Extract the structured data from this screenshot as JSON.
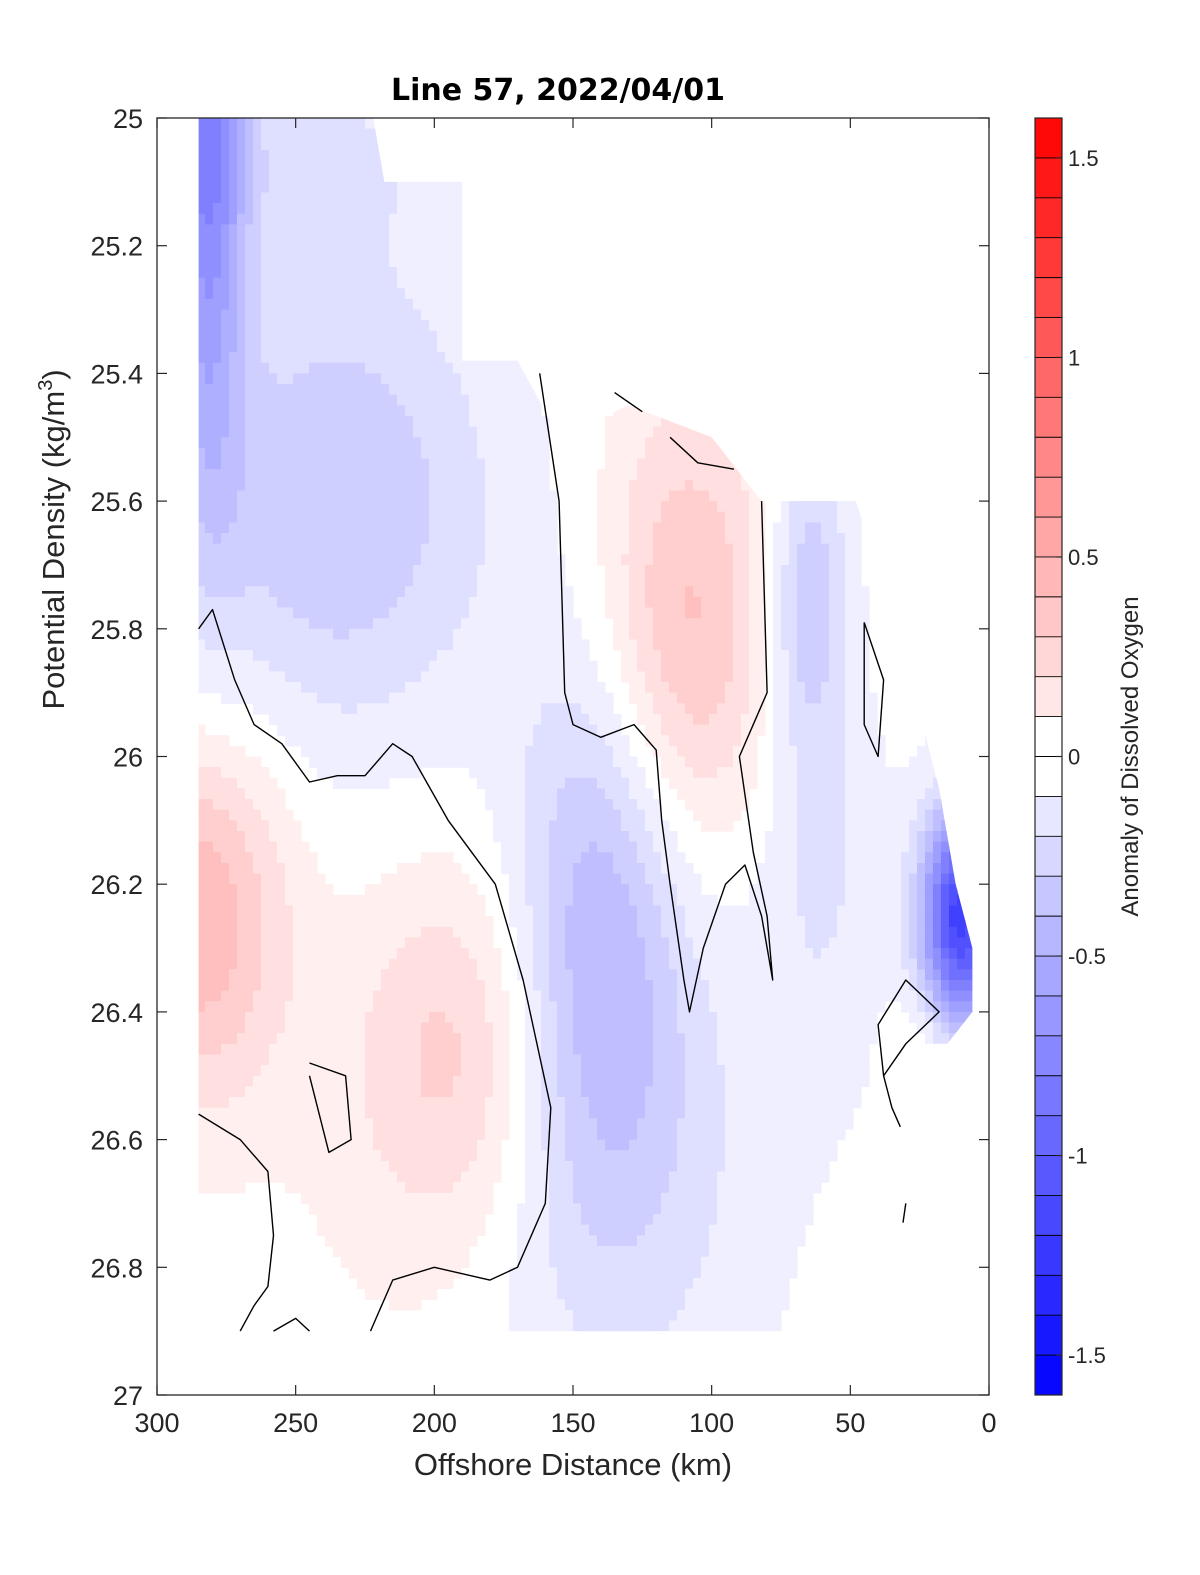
{
  "chart_data": {
    "type": "heatmap",
    "title": "Line 57, 2022/04/01",
    "xlabel": "Offshore Distance (km)",
    "ylabel_main": "Potential Density (kg/m",
    "ylabel_sup": "3",
    "ylabel_close": ")",
    "xlim": [
      300,
      0
    ],
    "ylim": [
      25,
      27
    ],
    "x_ticks": [
      300,
      250,
      200,
      150,
      100,
      50,
      0
    ],
    "x_tick_labels": [
      "300",
      "250",
      "200",
      "150",
      "100",
      "50",
      "0"
    ],
    "y_ticks": [
      25,
      25.2,
      25.4,
      25.6,
      25.8,
      26,
      26.2,
      26.4,
      26.6,
      26.8,
      27
    ],
    "y_tick_labels": [
      "25",
      "25.2",
      "25.4",
      "25.6",
      "25.8",
      "26",
      "26.2",
      "26.4",
      "26.6",
      "26.8",
      "27"
    ],
    "colorbar": {
      "label": "Anomaly of Dissolved Oxygen",
      "range": [
        -1.6,
        1.6
      ],
      "step": 0.1,
      "ticks": [
        1.5,
        1,
        0.5,
        0,
        -0.5,
        -1,
        -1.5
      ],
      "tick_labels": [
        "1.5",
        "1",
        "0.5",
        "0",
        "-0.5",
        "-1",
        "-1.5"
      ],
      "neutral_band": [
        -0.05,
        0.05
      ],
      "positive_color": "#ff0000",
      "negative_color": "#0000ff",
      "neutral_color": "#ffffff"
    },
    "contour_level": 0,
    "contour_color": "#000000",
    "data_columns_x": [
      285,
      140,
      125,
      70,
      50,
      10
    ],
    "field_features": [
      {
        "kind": "low",
        "x": 235,
        "y": 25.6,
        "value": -0.35,
        "sx": 40,
        "sy": 0.26
      },
      {
        "kind": "low",
        "x": 282,
        "y": 25.0,
        "value": -0.7,
        "sx": 10,
        "sy": 0.4
      },
      {
        "kind": "low",
        "x": 248,
        "y": 25.05,
        "value": -0.15,
        "sx": 45,
        "sy": 0.12
      },
      {
        "kind": "low",
        "x": 140,
        "y": 26.25,
        "value": -0.4,
        "sx": 22,
        "sy": 0.3
      },
      {
        "kind": "low",
        "x": 135,
        "y": 26.65,
        "value": -0.2,
        "sx": 40,
        "sy": 0.3
      },
      {
        "kind": "low",
        "x": 65,
        "y": 25.75,
        "value": -0.35,
        "sx": 10,
        "sy": 0.18
      },
      {
        "kind": "low",
        "x": 60,
        "y": 26.2,
        "value": -0.15,
        "sx": 18,
        "sy": 0.22
      },
      {
        "kind": "low",
        "x": 10,
        "y": 26.25,
        "value": -1.2,
        "sx": 10,
        "sy": 0.12
      },
      {
        "kind": "high",
        "x": 110,
        "y": 25.8,
        "value": 0.4,
        "sx": 22,
        "sy": 0.25
      },
      {
        "kind": "high",
        "x": 285,
        "y": 26.25,
        "value": 0.45,
        "sx": 22,
        "sy": 0.2
      },
      {
        "kind": "high",
        "x": 190,
        "y": 26.45,
        "value": 0.25,
        "sx": 25,
        "sy": 0.2
      },
      {
        "kind": "high",
        "x": 200,
        "y": 26.6,
        "value": 0.1,
        "sx": 35,
        "sy": 0.25
      },
      {
        "kind": "high",
        "x": 25,
        "y": 26.45,
        "value": 0.1,
        "sx": 8,
        "sy": 0.06
      }
    ]
  }
}
